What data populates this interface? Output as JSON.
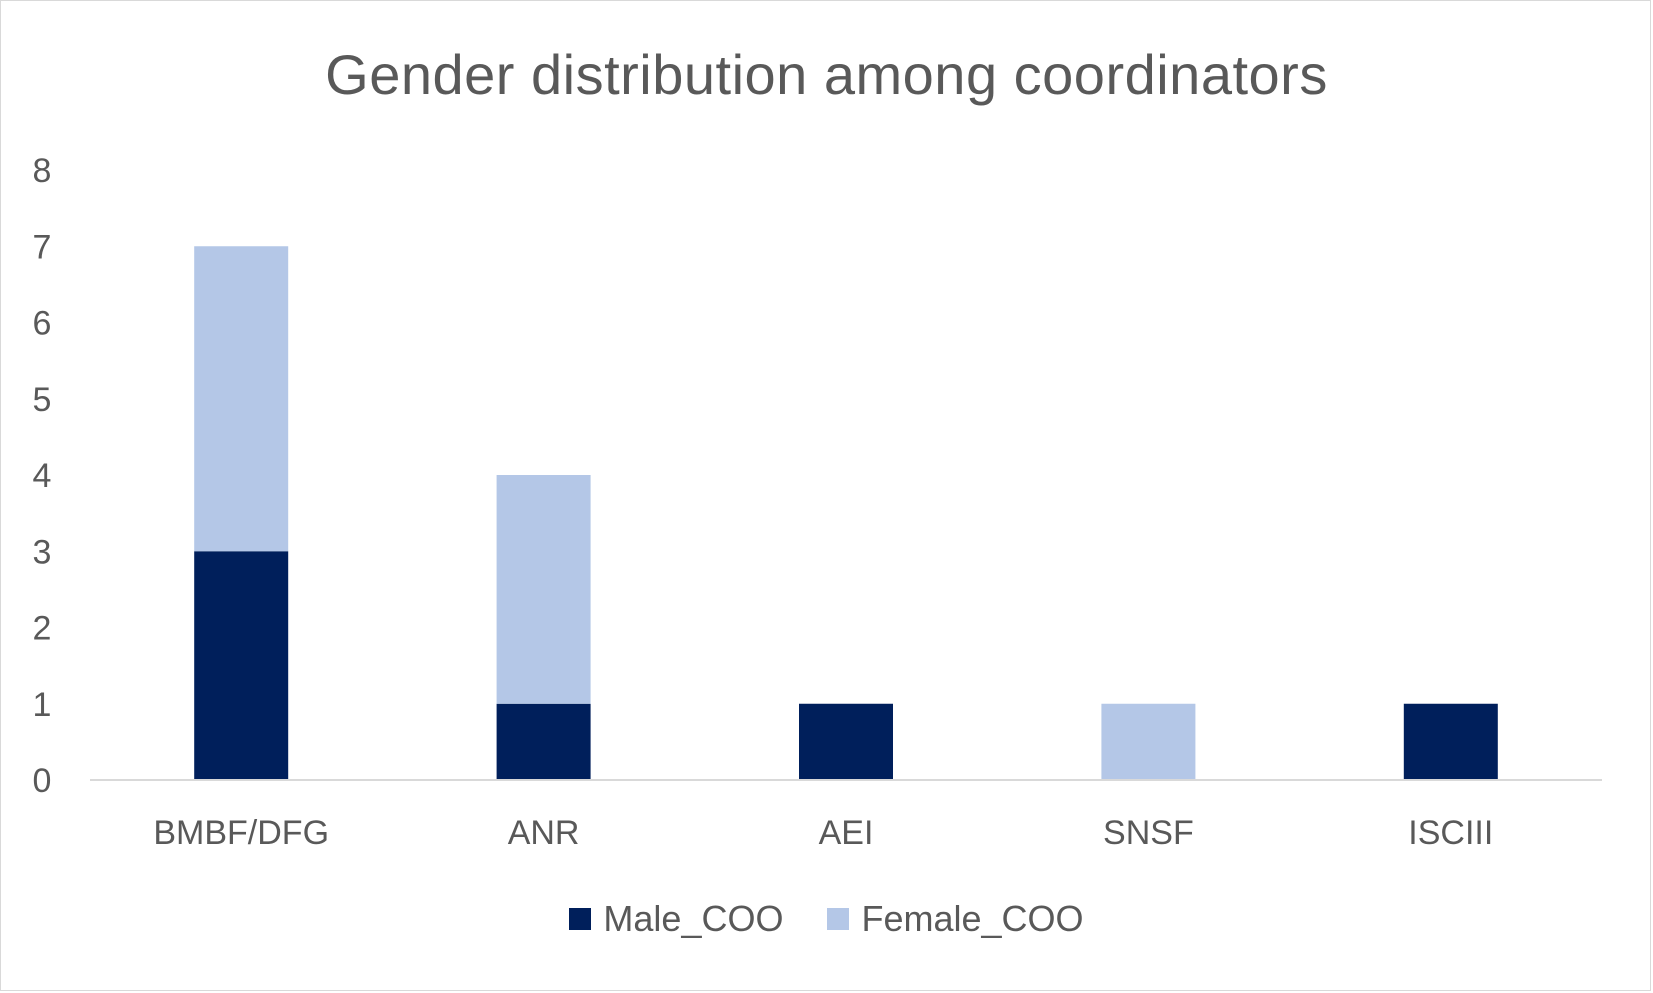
{
  "chart_data": {
    "type": "bar",
    "stacked": true,
    "title": "Gender distribution among coordinators",
    "xlabel": "",
    "ylabel": "",
    "categories": [
      "BMBF/DFG",
      "ANR",
      "AEI",
      "SNSF",
      "ISCIII"
    ],
    "series": [
      {
        "name": "Male_COO",
        "color": "#001f5b",
        "values": [
          3,
          1,
          1,
          0,
          1
        ]
      },
      {
        "name": "Female_COO",
        "color": "#b4c7e7",
        "values": [
          4,
          3,
          0,
          1,
          0
        ]
      }
    ],
    "ylim": [
      0,
      8
    ],
    "yticks": [
      0,
      1,
      2,
      3,
      4,
      5,
      6,
      7,
      8
    ],
    "grid": false,
    "legend_position": "bottom"
  }
}
